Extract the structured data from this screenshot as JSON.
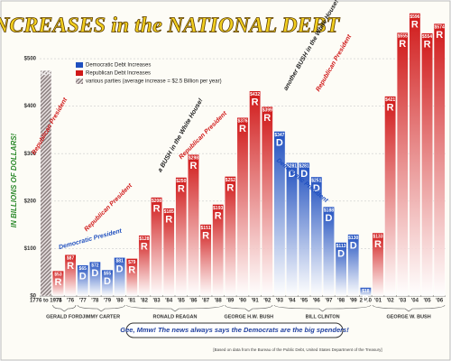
{
  "chart_data": {
    "type": "bar",
    "title": "INCREASES in the NATIONAL DEBT",
    "y_label": "IN BILLIONS OF DOLLARS!",
    "categories": [
      "1776 to 1974",
      "'75",
      "'76",
      "'77",
      "'78",
      "'79",
      "'80",
      "'81",
      "'82",
      "'83",
      "'84",
      "'85",
      "'86",
      "'87",
      "'88",
      "'89",
      "'90",
      "'91",
      "'92",
      "'93",
      "'94",
      "'95",
      "'96",
      "'97",
      "'98",
      "'99",
      "2000",
      "'01",
      "'02",
      "'03",
      "'04",
      "'05",
      "'06"
    ],
    "values": [
      475,
      53,
      87,
      65,
      72,
      55,
      81,
      79,
      128,
      208,
      185,
      250,
      298,
      151,
      193,
      252,
      376,
      432,
      399,
      347,
      281,
      281,
      251,
      188,
      113,
      130,
      18,
      133,
      421,
      555,
      596,
      554,
      574
    ],
    "value_labels": [
      "$475",
      "$53",
      "$87",
      "$65",
      "$72",
      "$55",
      "$81",
      "$79",
      "$128",
      "$208",
      "$185",
      "$250",
      "$298",
      "$151",
      "$193",
      "$252",
      "$376",
      "$432",
      "$399",
      "$347",
      "$281",
      "$281",
      "$251",
      "$188",
      "$113",
      "$130",
      "$18",
      "$133",
      "$421",
      "$555",
      "$596",
      "$554",
      "$574"
    ],
    "parties": [
      null,
      "R",
      "R",
      "D",
      "D",
      "D",
      "D",
      "R",
      "R",
      "R",
      "R",
      "R",
      "R",
      "R",
      "R",
      "R",
      "R",
      "R",
      "R",
      "D",
      "D",
      "D",
      "D",
      "D",
      "D",
      "D",
      "D",
      "R",
      "R",
      "R",
      "R",
      "R",
      "R"
    ],
    "party_colors": {
      "R": "#d01818",
      "D": "#1f4fbf"
    },
    "other_color": "#8a7f7f",
    "legend": [
      "Democratic Debt Increases",
      "Republican Debt Increases",
      "various parties (average increase = $2.5 Billion per year)"
    ],
    "presidents": [
      "GERALD FORD",
      "JIMMY CARTER",
      "RONALD REAGAN",
      "GEORGE H.W. BUSH",
      "BILL CLINTON",
      "GEORGE W. BUSH"
    ],
    "annotations": [
      "Democratic President",
      "Republican President",
      "Republican President",
      "a BUSH in the White House!",
      "Republican President",
      "Democratic President",
      "another BUSH in the White House!",
      "Republican President"
    ],
    "caption": "Gee, Mmw! The news always says the Democrats are the big spenders!",
    "source": "[Based on data from the Bureau of the Public Debt, United States Department of the Treasury]",
    "ylim": [
      0,
      618
    ],
    "yticks": [
      {
        "value": 0,
        "label": "$0"
      },
      {
        "value": 100,
        "label": "$100"
      },
      {
        "value": 200,
        "label": "$200"
      },
      {
        "value": 300,
        "label": "$300"
      },
      {
        "value": 400,
        "label": "$400"
      },
      {
        "value": 500,
        "label": "$500"
      }
    ],
    "grid": true
  }
}
